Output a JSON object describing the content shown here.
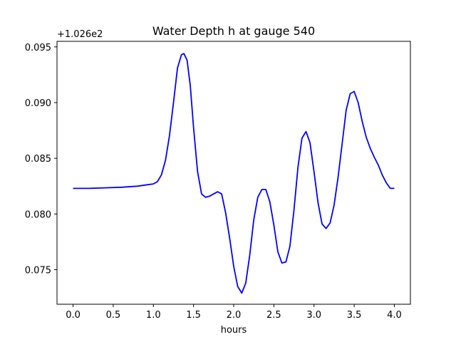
{
  "chart_data": {
    "type": "line",
    "title": "Water Depth h at gauge 540",
    "xlabel": "hours",
    "ylabel": "",
    "y_offset_label": "+1.026e2",
    "xlim": [
      -0.2,
      4.2
    ],
    "ylim": [
      0.0719,
      0.0955
    ],
    "x_ticks": [
      0.0,
      0.5,
      1.0,
      1.5,
      2.0,
      2.5,
      3.0,
      3.5,
      4.0
    ],
    "x_tick_labels": [
      "0.0",
      "0.5",
      "1.0",
      "1.5",
      "2.0",
      "2.5",
      "3.0",
      "3.5",
      "4.0"
    ],
    "y_ticks": [
      0.075,
      0.08,
      0.085,
      0.09,
      0.095
    ],
    "y_tick_labels": [
      "0.075",
      "0.080",
      "0.085",
      "0.090",
      "0.095"
    ],
    "grid": false,
    "series": [
      {
        "color": "#0000ff",
        "x": [
          0.0,
          0.2,
          0.4,
          0.6,
          0.8,
          0.9,
          1.0,
          1.05,
          1.1,
          1.15,
          1.2,
          1.25,
          1.3,
          1.35,
          1.38,
          1.42,
          1.46,
          1.5,
          1.55,
          1.6,
          1.65,
          1.7,
          1.75,
          1.8,
          1.85,
          1.9,
          1.95,
          2.0,
          2.05,
          2.1,
          2.15,
          2.2,
          2.25,
          2.3,
          2.35,
          2.4,
          2.45,
          2.5,
          2.55,
          2.6,
          2.65,
          2.7,
          2.75,
          2.8,
          2.85,
          2.9,
          2.95,
          3.0,
          3.05,
          3.1,
          3.15,
          3.2,
          3.25,
          3.3,
          3.35,
          3.4,
          3.45,
          3.5,
          3.55,
          3.6,
          3.65,
          3.7,
          3.75,
          3.8,
          3.85,
          3.9,
          3.95,
          4.0
        ],
        "y": [
          0.0823,
          0.0823,
          0.08235,
          0.0824,
          0.0825,
          0.0826,
          0.0827,
          0.0829,
          0.0835,
          0.0848,
          0.087,
          0.09,
          0.0931,
          0.0943,
          0.0944,
          0.0938,
          0.0915,
          0.0878,
          0.0838,
          0.0818,
          0.0815,
          0.0816,
          0.0818,
          0.082,
          0.0818,
          0.0801,
          0.0778,
          0.0753,
          0.0735,
          0.0729,
          0.0738,
          0.0763,
          0.0795,
          0.0815,
          0.0822,
          0.0822,
          0.0811,
          0.079,
          0.0766,
          0.0756,
          0.0757,
          0.0771,
          0.0803,
          0.0842,
          0.0868,
          0.0874,
          0.0864,
          0.0838,
          0.081,
          0.0791,
          0.0787,
          0.0792,
          0.0808,
          0.0833,
          0.0863,
          0.0893,
          0.0908,
          0.091,
          0.09,
          0.0883,
          0.0869,
          0.0859,
          0.0851,
          0.0844,
          0.0835,
          0.0828,
          0.0823,
          0.0823
        ]
      }
    ]
  }
}
